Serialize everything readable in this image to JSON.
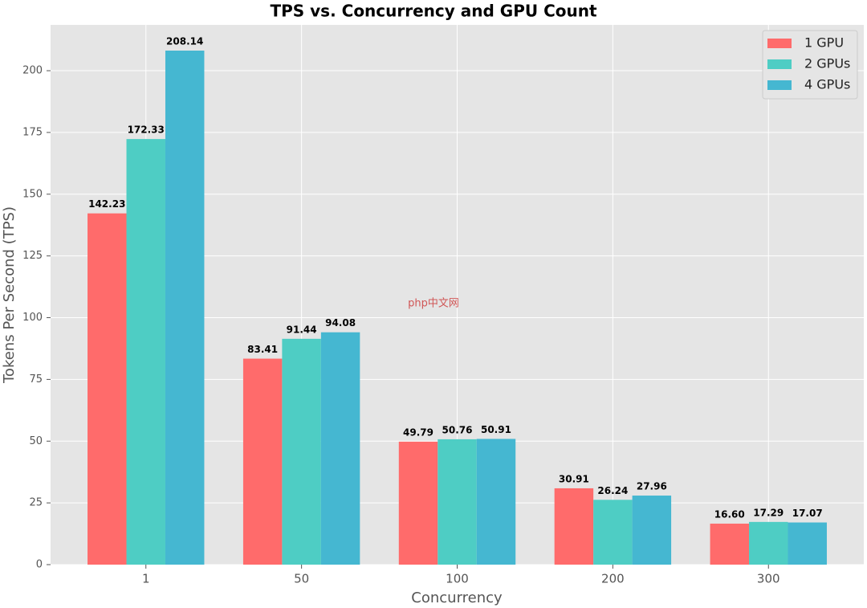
{
  "chart_data": {
    "type": "bar",
    "title": "TPS vs. Concurrency and GPU Count",
    "x_label": "Concurrency",
    "y_label": "Tokens Per Second (TPS)",
    "categories": [
      "1",
      "50",
      "100",
      "200",
      "300"
    ],
    "series": [
      {
        "name": "1 GPU",
        "color": "#ff6b6b",
        "values": [
          142.23,
          83.41,
          49.79,
          30.91,
          16.6
        ],
        "value_labels": [
          "142.23",
          "83.41",
          "49.79",
          "30.91",
          "16.60"
        ]
      },
      {
        "name": "2 GPUs",
        "color": "#4ecdc4",
        "values": [
          172.33,
          91.44,
          50.76,
          26.24,
          17.29
        ],
        "value_labels": [
          "172.33",
          "91.44",
          "50.76",
          "26.24",
          "17.29"
        ]
      },
      {
        "name": "4 GPUs",
        "color": "#45b7d1",
        "values": [
          208.14,
          94.08,
          50.91,
          27.96,
          17.07
        ],
        "value_labels": [
          "208.14",
          "94.08",
          "50.91",
          "27.96",
          "17.07"
        ]
      }
    ],
    "ylim": [
      0,
      218.55
    ],
    "yticks": [
      0,
      25,
      50,
      75,
      100,
      125,
      150,
      175,
      200
    ],
    "grid": true,
    "legend": "upper right",
    "watermark": "php中文网"
  }
}
